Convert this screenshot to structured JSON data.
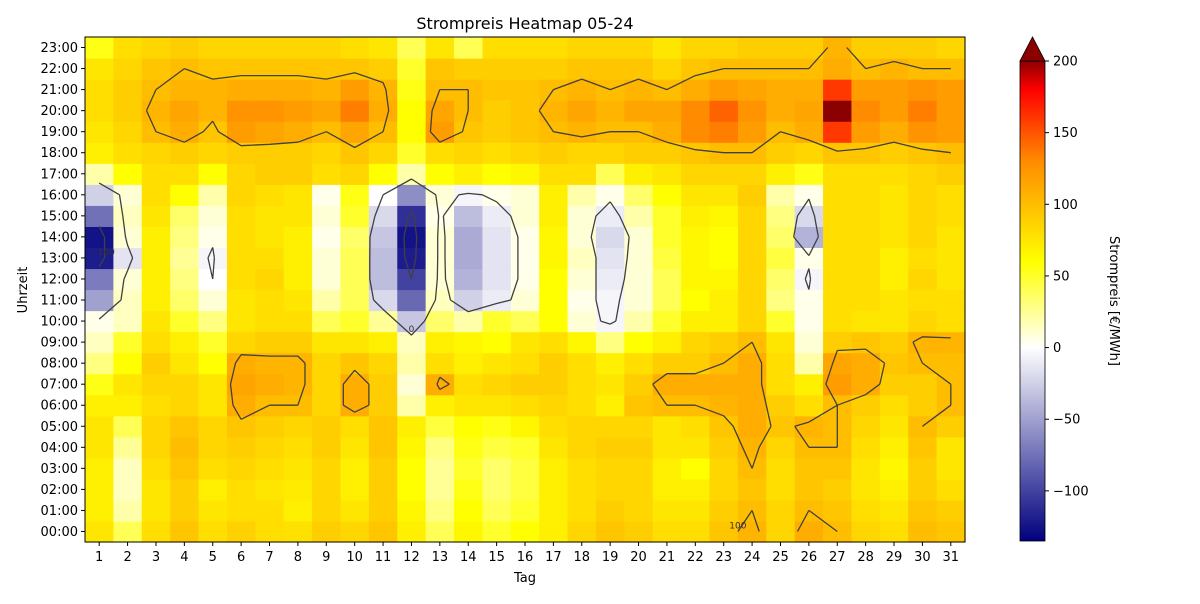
{
  "chart_data": {
    "type": "heatmap",
    "title": "Strompreis Heatmap 05-24",
    "xlabel": "Tag",
    "ylabel": "Uhrzeit",
    "x_categories": [
      "1",
      "2",
      "3",
      "4",
      "5",
      "6",
      "7",
      "8",
      "9",
      "10",
      "11",
      "12",
      "13",
      "14",
      "15",
      "16",
      "17",
      "18",
      "19",
      "20",
      "21",
      "22",
      "23",
      "24",
      "25",
      "26",
      "27",
      "28",
      "29",
      "30",
      "31"
    ],
    "y_categories": [
      "00:00",
      "01:00",
      "02:00",
      "03:00",
      "04:00",
      "05:00",
      "06:00",
      "07:00",
      "08:00",
      "09:00",
      "10:00",
      "11:00",
      "12:00",
      "13:00",
      "14:00",
      "15:00",
      "16:00",
      "17:00",
      "18:00",
      "19:00",
      "20:00",
      "21:00",
      "22:00",
      "23:00"
    ],
    "values": [
      [
        75,
        40,
        80,
        95,
        80,
        88,
        80,
        78,
        90,
        85,
        95,
        70,
        40,
        65,
        50,
        60,
        70,
        85,
        95,
        90,
        80,
        80,
        95,
        105,
        85,
        110,
        100,
        85,
        80,
        100,
        95
      ],
      [
        70,
        20,
        75,
        90,
        75,
        80,
        80,
        70,
        85,
        75,
        90,
        65,
        30,
        60,
        40,
        50,
        70,
        80,
        90,
        85,
        75,
        75,
        90,
        100,
        85,
        100,
        95,
        80,
        75,
        95,
        90
      ],
      [
        70,
        15,
        75,
        90,
        70,
        80,
        75,
        72,
        85,
        70,
        90,
        60,
        25,
        55,
        35,
        45,
        70,
        80,
        85,
        85,
        70,
        70,
        85,
        95,
        80,
        95,
        90,
        75,
        70,
        90,
        80
      ],
      [
        70,
        15,
        80,
        95,
        80,
        85,
        80,
        75,
        85,
        70,
        90,
        60,
        25,
        50,
        35,
        45,
        70,
        80,
        85,
        85,
        70,
        60,
        85,
        100,
        80,
        95,
        95,
        75,
        65,
        90,
        75
      ],
      [
        75,
        25,
        85,
        100,
        85,
        90,
        85,
        80,
        90,
        75,
        95,
        65,
        30,
        55,
        45,
        50,
        75,
        85,
        90,
        90,
        75,
        75,
        90,
        105,
        85,
        100,
        100,
        80,
        70,
        95,
        75
      ],
      [
        75,
        40,
        85,
        95,
        85,
        95,
        90,
        85,
        90,
        80,
        95,
        70,
        45,
        60,
        55,
        65,
        80,
        85,
        85,
        85,
        75,
        80,
        95,
        110,
        95,
        105,
        100,
        85,
        75,
        100,
        90
      ],
      [
        70,
        70,
        80,
        85,
        75,
        110,
        100,
        100,
        85,
        110,
        90,
        20,
        70,
        75,
        75,
        80,
        85,
        80,
        70,
        95,
        100,
        100,
        105,
        110,
        90,
        80,
        100,
        90,
        80,
        90,
        100
      ],
      [
        55,
        75,
        85,
        85,
        75,
        115,
        110,
        105,
        85,
        110,
        90,
        10,
        110,
        80,
        85,
        90,
        90,
        80,
        75,
        90,
        110,
        110,
        110,
        110,
        80,
        70,
        120,
        110,
        90,
        90,
        100
      ],
      [
        30,
        60,
        90,
        75,
        60,
        110,
        105,
        105,
        85,
        95,
        85,
        20,
        80,
        70,
        75,
        80,
        90,
        80,
        70,
        80,
        90,
        90,
        100,
        110,
        80,
        20,
        115,
        110,
        95,
        100,
        100
      ],
      [
        15,
        50,
        80,
        70,
        50,
        85,
        90,
        90,
        75,
        75,
        70,
        15,
        70,
        65,
        60,
        75,
        80,
        65,
        30,
        60,
        70,
        85,
        90,
        100,
        75,
        10,
        90,
        95,
        90,
        105,
        105
      ],
      [
        5,
        15,
        75,
        50,
        30,
        75,
        80,
        80,
        40,
        50,
        25,
        -30,
        35,
        20,
        50,
        40,
        60,
        10,
        -5,
        20,
        50,
        70,
        70,
        85,
        50,
        5,
        80,
        75,
        75,
        85,
        80
      ],
      [
        -50,
        15,
        70,
        35,
        10,
        75,
        80,
        75,
        20,
        40,
        -20,
        -80,
        15,
        -25,
        -10,
        10,
        60,
        5,
        -5,
        10,
        40,
        60,
        70,
        85,
        30,
        5,
        80,
        80,
        75,
        80,
        80
      ],
      [
        -70,
        10,
        70,
        30,
        0,
        80,
        85,
        70,
        10,
        40,
        -35,
        -100,
        10,
        -40,
        -15,
        5,
        60,
        10,
        -10,
        10,
        40,
        65,
        65,
        85,
        35,
        -5,
        80,
        80,
        70,
        85,
        75
      ],
      [
        -120,
        -15,
        70,
        25,
        -5,
        80,
        80,
        70,
        10,
        40,
        -35,
        -120,
        10,
        -45,
        -15,
        5,
        65,
        15,
        -15,
        10,
        45,
        65,
        60,
        85,
        45,
        5,
        80,
        80,
        70,
        80,
        75
      ],
      [
        -125,
        10,
        70,
        30,
        5,
        80,
        75,
        70,
        5,
        35,
        -30,
        -125,
        10,
        -45,
        -15,
        5,
        65,
        10,
        -20,
        10,
        50,
        65,
        60,
        85,
        35,
        -40,
        80,
        80,
        75,
        85,
        75
      ],
      [
        -75,
        15,
        75,
        35,
        10,
        80,
        75,
        75,
        10,
        50,
        -20,
        -110,
        5,
        -35,
        -10,
        10,
        70,
        10,
        -10,
        20,
        50,
        70,
        65,
        85,
        30,
        -20,
        80,
        80,
        75,
        85,
        80
      ],
      [
        -25,
        10,
        80,
        60,
        20,
        85,
        80,
        75,
        5,
        55,
        0,
        -60,
        10,
        -5,
        5,
        10,
        70,
        20,
        5,
        35,
        60,
        75,
        75,
        90,
        20,
        5,
        80,
        80,
        75,
        85,
        80
      ],
      [
        20,
        60,
        80,
        80,
        60,
        85,
        90,
        90,
        80,
        85,
        60,
        20,
        60,
        70,
        60,
        65,
        80,
        80,
        40,
        70,
        75,
        85,
        85,
        85,
        70,
        55,
        80,
        80,
        80,
        85,
        90
      ],
      [
        70,
        80,
        85,
        90,
        85,
        90,
        90,
        90,
        85,
        95,
        85,
        50,
        80,
        85,
        80,
        85,
        90,
        85,
        85,
        90,
        90,
        95,
        100,
        100,
        90,
        85,
        95,
        95,
        90,
        95,
        100
      ],
      [
        75,
        85,
        100,
        110,
        95,
        120,
        115,
        110,
        100,
        115,
        100,
        60,
        120,
        95,
        90,
        95,
        100,
        105,
        100,
        100,
        110,
        130,
        135,
        120,
        100,
        110,
        160,
        120,
        110,
        125,
        120
      ],
      [
        80,
        90,
        105,
        115,
        105,
        125,
        125,
        120,
        115,
        135,
        110,
        60,
        115,
        100,
        90,
        95,
        105,
        115,
        105,
        115,
        115,
        130,
        145,
        125,
        110,
        115,
        200,
        130,
        120,
        135,
        120
      ],
      [
        80,
        90,
        100,
        105,
        105,
        110,
        110,
        110,
        105,
        120,
        105,
        55,
        100,
        100,
        95,
        95,
        100,
        105,
        100,
        105,
        100,
        110,
        120,
        115,
        110,
        110,
        160,
        120,
        120,
        125,
        120
      ],
      [
        75,
        85,
        95,
        100,
        95,
        95,
        95,
        95,
        95,
        95,
        90,
        50,
        95,
        90,
        90,
        90,
        90,
        95,
        95,
        95,
        85,
        95,
        100,
        100,
        100,
        100,
        110,
        100,
        105,
        100,
        100
      ],
      [
        55,
        80,
        85,
        90,
        85,
        85,
        85,
        85,
        85,
        80,
        75,
        40,
        75,
        40,
        80,
        80,
        80,
        85,
        85,
        85,
        75,
        85,
        85,
        90,
        90,
        90,
        105,
        90,
        90,
        90,
        85
      ]
    ],
    "colorbar": {
      "label": "Strompreis [€/MWh]",
      "vmin": -135,
      "vmax": 200,
      "ticks": [
        -100,
        -50,
        0,
        50,
        100,
        150,
        200
      ],
      "extend": "max",
      "colormap": [
        "#00007f",
        "#ffffff",
        "#ffff00",
        "#ff8c00",
        "#ff0000",
        "#8b0000"
      ]
    },
    "contour_levels": [
      -100,
      0,
      100
    ],
    "contour_color": "#404040",
    "grid": false
  }
}
